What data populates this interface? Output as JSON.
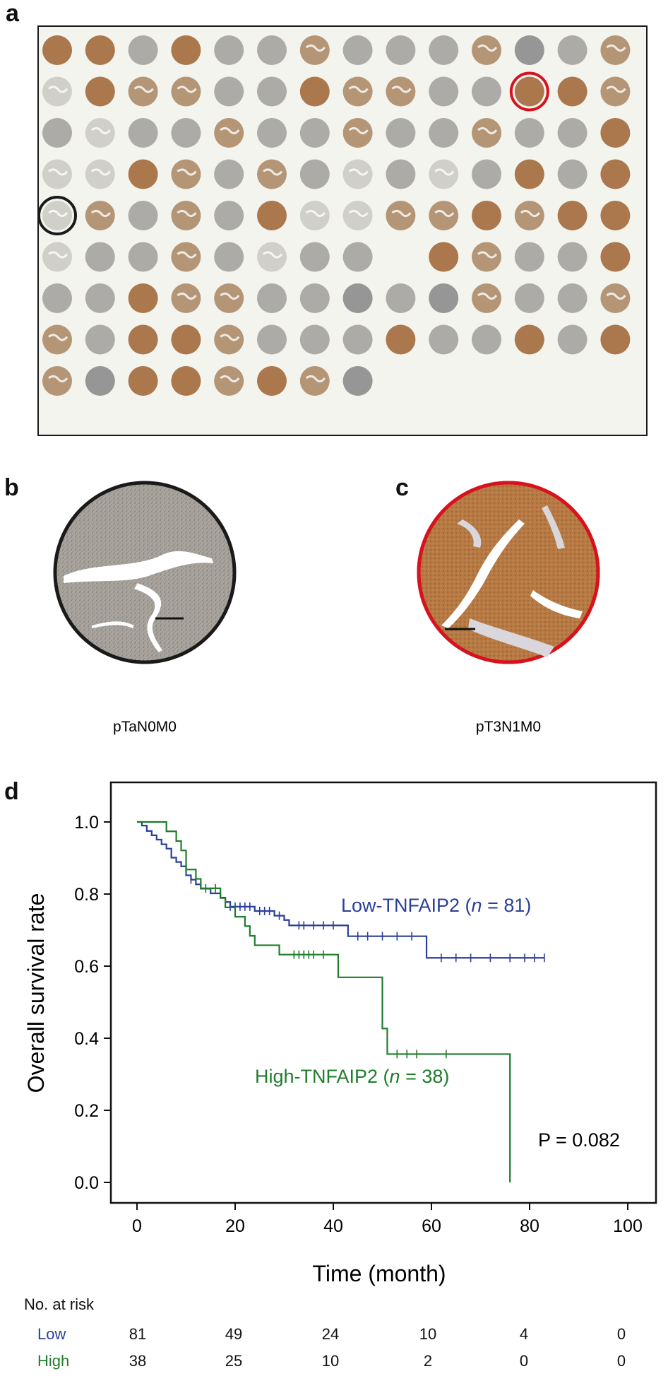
{
  "panels": {
    "a": {
      "letter": "a"
    },
    "b": {
      "letter": "b",
      "caption": "pTaN0M0"
    },
    "c": {
      "letter": "c",
      "caption": "pT3N1M0"
    },
    "d": {
      "letter": "d"
    }
  },
  "colors": {
    "low": "#2a3f9a",
    "high": "#1f7d2b",
    "highlight_red": "#d8121d",
    "highlight_black": "#1a1a1a",
    "stain_brown": "#a9703a",
    "stain_gray": "#9a9a98"
  },
  "chart_data": {
    "type": "line",
    "subtype": "kaplan-meier",
    "xlabel": "Time (month)",
    "ylabel": "Overall survival rate",
    "xlim": [
      0,
      100
    ],
    "ylim": [
      0.0,
      1.0
    ],
    "xticks": [
      "0",
      "20",
      "40",
      "60",
      "80",
      "100"
    ],
    "yticks": [
      "0.0",
      "0.2",
      "0.4",
      "0.6",
      "0.8",
      "1.0"
    ],
    "grid": false,
    "annotation": "P = 0.082",
    "series": [
      {
        "name": "Low-TNFAIP2",
        "label_prefix": "Low-TNFAIP2 (",
        "label_n": "n",
        "label_suffix": " = 81)",
        "steps": [
          [
            0,
            1.0
          ],
          [
            1,
            0.99
          ],
          [
            2,
            0.975
          ],
          [
            3,
            0.963
          ],
          [
            4,
            0.951
          ],
          [
            5,
            0.938
          ],
          [
            6,
            0.926
          ],
          [
            7,
            0.901
          ],
          [
            8,
            0.889
          ],
          [
            9,
            0.877
          ],
          [
            10,
            0.852
          ],
          [
            11,
            0.84
          ],
          [
            12,
            0.827
          ],
          [
            13,
            0.815
          ],
          [
            15,
            0.802
          ],
          [
            17,
            0.79
          ],
          [
            18,
            0.778
          ],
          [
            19,
            0.765
          ],
          [
            24,
            0.753
          ],
          [
            28,
            0.74
          ],
          [
            30,
            0.728
          ],
          [
            31,
            0.713
          ],
          [
            43,
            0.683
          ],
          [
            59,
            0.623
          ]
        ],
        "censored": [
          [
            11,
            0.84
          ],
          [
            14,
            0.815
          ],
          [
            19,
            0.765
          ],
          [
            20,
            0.765
          ],
          [
            21,
            0.765
          ],
          [
            22,
            0.765
          ],
          [
            23,
            0.765
          ],
          [
            25,
            0.753
          ],
          [
            26,
            0.753
          ],
          [
            27,
            0.753
          ],
          [
            29,
            0.74
          ],
          [
            33,
            0.713
          ],
          [
            34,
            0.713
          ],
          [
            36,
            0.713
          ],
          [
            38,
            0.713
          ],
          [
            40,
            0.713
          ],
          [
            45,
            0.683
          ],
          [
            47,
            0.683
          ],
          [
            50,
            0.683
          ],
          [
            53,
            0.683
          ],
          [
            56,
            0.683
          ],
          [
            62,
            0.623
          ],
          [
            65,
            0.623
          ],
          [
            68,
            0.623
          ],
          [
            72,
            0.623
          ],
          [
            76,
            0.623
          ],
          [
            79,
            0.623
          ],
          [
            81,
            0.623
          ],
          [
            83,
            0.623
          ]
        ],
        "end_x": 83
      },
      {
        "name": "High-TNFAIP2",
        "label_prefix": "High-TNFAIP2 (",
        "label_n": "n",
        "label_suffix": " = 38)",
        "steps": [
          [
            0,
            1.0
          ],
          [
            6,
            0.974
          ],
          [
            8,
            0.947
          ],
          [
            9,
            0.921
          ],
          [
            10,
            0.868
          ],
          [
            12,
            0.842
          ],
          [
            13,
            0.816
          ],
          [
            17,
            0.789
          ],
          [
            18,
            0.763
          ],
          [
            20,
            0.737
          ],
          [
            22,
            0.711
          ],
          [
            23,
            0.684
          ],
          [
            24,
            0.658
          ],
          [
            29,
            0.632
          ],
          [
            41,
            0.569
          ],
          [
            50,
            0.427
          ],
          [
            51,
            0.356
          ],
          [
            76,
            0.0
          ]
        ],
        "censored": [
          [
            10,
            0.868
          ],
          [
            14,
            0.816
          ],
          [
            16,
            0.816
          ],
          [
            32,
            0.632
          ],
          [
            33,
            0.632
          ],
          [
            34,
            0.632
          ],
          [
            35,
            0.632
          ],
          [
            36,
            0.632
          ],
          [
            38,
            0.632
          ],
          [
            53,
            0.356
          ],
          [
            55,
            0.356
          ],
          [
            57,
            0.356
          ],
          [
            63,
            0.356
          ]
        ],
        "end_x": 76
      }
    ]
  },
  "risk_table": {
    "title": "No. at risk",
    "rows": [
      {
        "label": "Low",
        "values": [
          "81",
          "49",
          "24",
          "10",
          "4",
          "0"
        ]
      },
      {
        "label": "High",
        "values": [
          "38",
          "25",
          "10",
          "2",
          "0",
          "0"
        ]
      }
    ]
  },
  "tma": {
    "rows": [
      [
        "b",
        "b",
        "g",
        "b",
        "g",
        "g",
        "m",
        "g",
        "g",
        "g",
        "m",
        "d",
        "g",
        "m"
      ],
      [
        "f",
        "b",
        "m",
        "m",
        "g",
        "g",
        "b",
        "m",
        "m",
        "g",
        "g",
        "b",
        "b",
        "m"
      ],
      [
        "g",
        "f",
        "g",
        "g",
        "m",
        "g",
        "g",
        "m",
        "g",
        "g",
        "m",
        "g",
        "g",
        "b"
      ],
      [
        "f",
        "f",
        "b",
        "m",
        "g",
        "m",
        "g",
        "f",
        "g",
        "f",
        "g",
        "b",
        "g",
        "b"
      ],
      [
        "f",
        "m",
        "g",
        "m",
        "g",
        "b",
        "f",
        "f",
        "m",
        "m",
        "b",
        "m",
        "b",
        "b"
      ],
      [
        "f",
        "g",
        "g",
        "m",
        "g",
        "f",
        "g",
        "g",
        "",
        "b",
        "m",
        "g",
        "g",
        "b"
      ],
      [
        "g",
        "g",
        "b",
        "m",
        "m",
        "g",
        "g",
        "d",
        "g",
        "d",
        "m",
        "g",
        "g",
        "m"
      ],
      [
        "m",
        "g",
        "b",
        "b",
        "m",
        "g",
        "g",
        "g",
        "b",
        "g",
        "g",
        "b",
        "g",
        "b"
      ],
      [
        "m",
        "d",
        "b",
        "b",
        "m",
        "b",
        "m",
        "d",
        "",
        "",
        "",
        "",
        "",
        ""
      ]
    ]
  }
}
